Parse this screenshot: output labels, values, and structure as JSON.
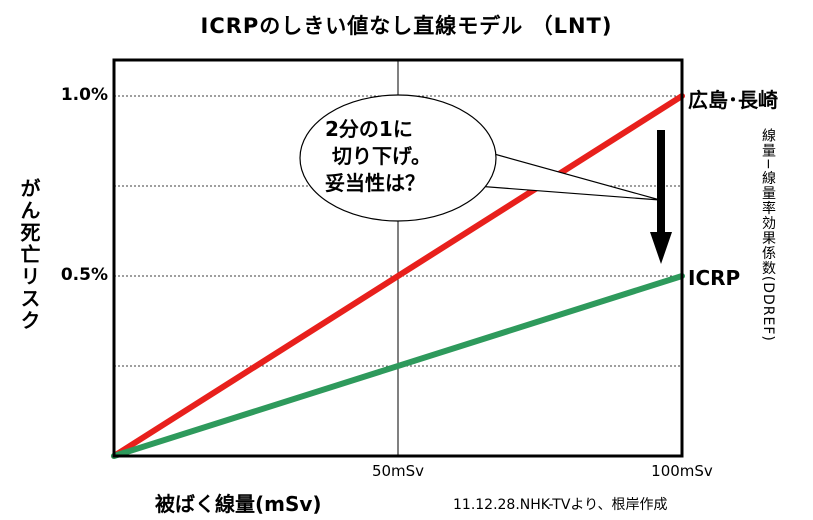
{
  "chart_data": {
    "type": "line",
    "title": "ICRPのしきい値なし直線モデル （LNT)",
    "xlabel": "被ばく線量(mSv)",
    "ylabel": "がん死亡リスク",
    "xlim": [
      0,
      100
    ],
    "ylim": [
      0,
      1.1
    ],
    "x_ticks": [
      {
        "value": 50,
        "label": "50mSv"
      },
      {
        "value": 100,
        "label": "100mSv"
      }
    ],
    "y_ticks": [
      {
        "value": 1.0,
        "label": "1.0%"
      },
      {
        "value": 0.5,
        "label": "0.5%"
      }
    ],
    "h_gridlines": [
      0.25,
      0.5,
      0.75,
      1.0
    ],
    "v_gridlines": [
      50
    ],
    "series": [
      {
        "name": "広島･長崎",
        "color": "#e8201c",
        "x": [
          0,
          100
        ],
        "y": [
          0,
          1.0
        ]
      },
      {
        "name": "ICRP",
        "color": "#2e9a5c",
        "x": [
          0,
          100
        ],
        "y": [
          0,
          0.5
        ]
      }
    ],
    "annotations": {
      "callout": "2分の1に\n 切り下げ。\n妥当性は？",
      "side_label": "線量−線量率効果係数(DDREF)"
    },
    "source_note": "11.12.28.NHK-TVより、根岸作成"
  }
}
